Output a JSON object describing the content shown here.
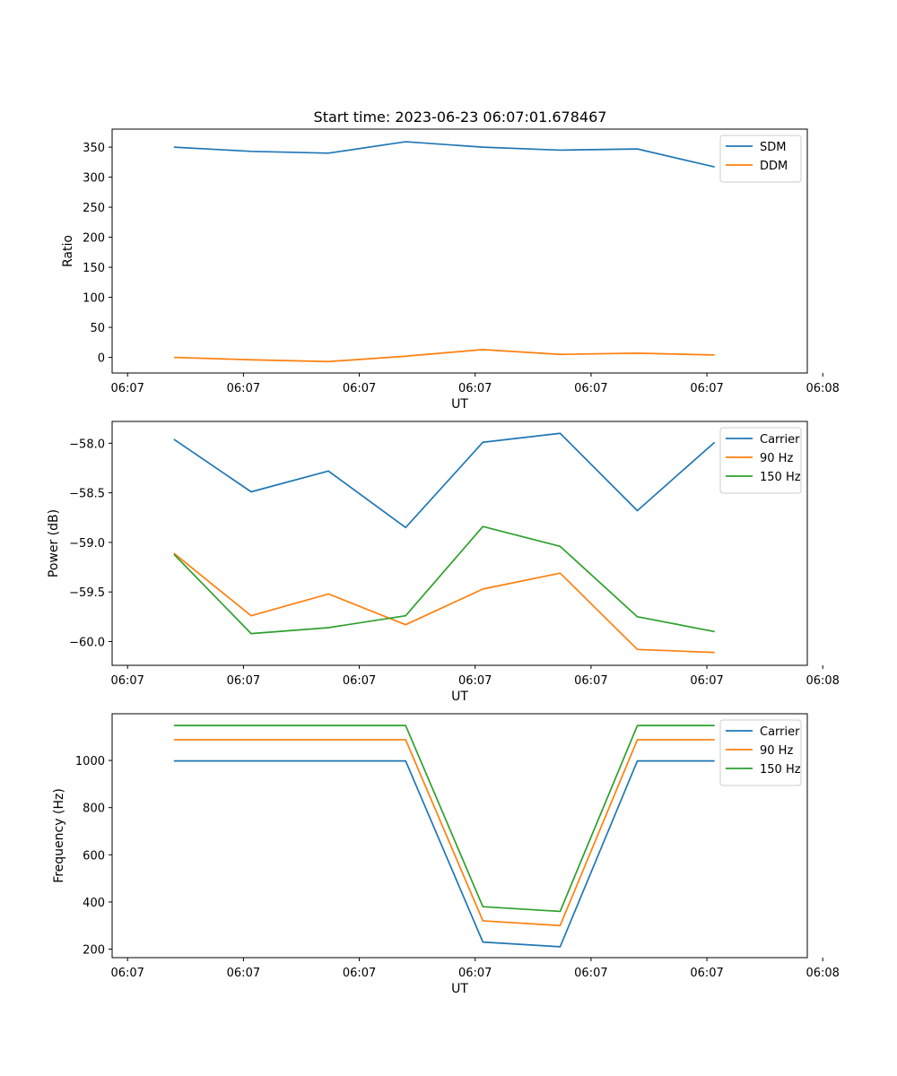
{
  "figure": {
    "title": "Start time: 2023-06-23 06:07:01.678467"
  },
  "colors": {
    "blue": "#1f77b4",
    "orange": "#ff7f0e",
    "green": "#2ca02c"
  },
  "chart_data": [
    {
      "type": "line",
      "title": "Start time: 2023-06-23 06:07:01.678467",
      "xlabel": "UT",
      "ylabel": "Ratio",
      "x": [
        1,
        2,
        3,
        4,
        5,
        6,
        7,
        8
      ],
      "xlim": [
        0.2,
        9.2
      ],
      "xticks": [
        0.4,
        1.9,
        3.4,
        4.9,
        6.4,
        7.9,
        9.4
      ],
      "xtick_labels": [
        "06:07",
        "06:07",
        "06:07",
        "06:07",
        "06:07",
        "06:07",
        "06:08"
      ],
      "ylim": [
        -26,
        380
      ],
      "yticks": [
        0,
        50,
        100,
        150,
        200,
        250,
        300,
        350
      ],
      "legend_position": "top-right",
      "grid": false,
      "series": [
        {
          "name": "SDM",
          "color": "#1f77b4",
          "values": [
            350,
            343,
            340,
            359,
            350,
            345,
            347,
            317
          ]
        },
        {
          "name": "DDM",
          "color": "#ff7f0e",
          "values": [
            0,
            -4,
            -7,
            2,
            13,
            5,
            7,
            4
          ]
        }
      ]
    },
    {
      "type": "line",
      "xlabel": "UT",
      "ylabel": "Power (dB)",
      "x": [
        1,
        2,
        3,
        4,
        5,
        6,
        7,
        8
      ],
      "xlim": [
        0.2,
        9.2
      ],
      "xticks": [
        0.4,
        1.9,
        3.4,
        4.9,
        6.4,
        7.9,
        9.4
      ],
      "xtick_labels": [
        "06:07",
        "06:07",
        "06:07",
        "06:07",
        "06:07",
        "06:07",
        "06:08"
      ],
      "ylim": [
        -60.24,
        -57.78
      ],
      "yticks": [
        -60.0,
        -59.5,
        -59.0,
        -58.5,
        -58.0
      ],
      "ytick_labels": [
        "−60.0",
        "−59.5",
        "−59.0",
        "−58.5",
        "−58.0"
      ],
      "legend_position": "top-right",
      "grid": false,
      "series": [
        {
          "name": "Carrier",
          "color": "#1f77b4",
          "values": [
            -57.96,
            -58.49,
            -58.28,
            -58.85,
            -57.99,
            -57.9,
            -58.68,
            -57.99
          ]
        },
        {
          "name": "90 Hz",
          "color": "#ff7f0e",
          "values": [
            -59.11,
            -59.74,
            -59.52,
            -59.83,
            -59.47,
            -59.31,
            -60.08,
            -60.11
          ]
        },
        {
          "name": "150 Hz",
          "color": "#2ca02c",
          "values": [
            -59.12,
            -59.92,
            -59.86,
            -59.74,
            -58.84,
            -59.04,
            -59.75,
            -59.9
          ]
        }
      ]
    },
    {
      "type": "line",
      "xlabel": "UT",
      "ylabel": "Frequency (Hz)",
      "x": [
        1,
        2,
        3,
        4,
        5,
        6,
        7,
        8
      ],
      "xlim": [
        0.2,
        9.2
      ],
      "xticks": [
        0.4,
        1.9,
        3.4,
        4.9,
        6.4,
        7.9,
        9.4
      ],
      "xtick_labels": [
        "06:07",
        "06:07",
        "06:07",
        "06:07",
        "06:07",
        "06:07",
        "06:08"
      ],
      "ylim": [
        164,
        1198
      ],
      "yticks": [
        200,
        400,
        600,
        800,
        1000
      ],
      "legend_position": "top-right",
      "grid": false,
      "series": [
        {
          "name": "Carrier",
          "color": "#1f77b4",
          "values": [
            998,
            998,
            998,
            998,
            230,
            210,
            998,
            998
          ]
        },
        {
          "name": "90 Hz",
          "color": "#ff7f0e",
          "values": [
            1088,
            1088,
            1088,
            1088,
            320,
            300,
            1088,
            1088
          ]
        },
        {
          "name": "150 Hz",
          "color": "#2ca02c",
          "values": [
            1148,
            1148,
            1148,
            1148,
            380,
            360,
            1148,
            1148
          ]
        }
      ]
    }
  ]
}
